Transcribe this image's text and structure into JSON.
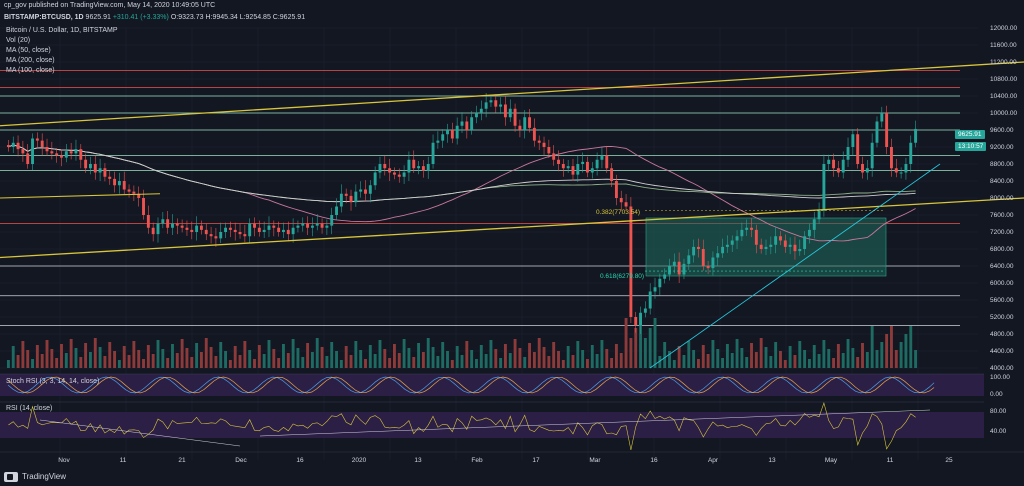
{
  "header": {
    "publisher": "cp_gov published on TradingView.com, May 14, 2020 10:49:05 UTC"
  },
  "symbol_bar": {
    "symbol": "BITSTAMP:BTCUSD, 1D",
    "price": "9625.91",
    "change": "+310.41 (+3.33%)",
    "ohlc": "O:9323.73  H:9945.34  L:9254.85  C:9625.91"
  },
  "legend": {
    "title": "Bitcoin / U.S. Dollar, 1D, BITSTAMP",
    "items": [
      "Vol (20)",
      "MA (50, close)",
      "MA (200, close)",
      "MA (100, close)"
    ]
  },
  "price_tags": {
    "current": "9625.91",
    "countdown": "13:10:57"
  },
  "indicators": {
    "stoch_label": "Stoch RSI (3, 3, 14, 14, close)",
    "rsi_label": "RSI (14, close)"
  },
  "fib_labels": {
    "fib382": "0.382(7703.54)",
    "fib618": "0.618(6279.80)"
  },
  "footer": {
    "brand": "TradingView"
  },
  "colors": {
    "background": "#131722",
    "up": "#26a69a",
    "down": "#ef5350",
    "trendline": "#d9c63a",
    "support_green": "#9ee3c8",
    "resistance_red": "#ef5350"
  },
  "chart_data": {
    "type": "candlestick",
    "title": "Bitcoin / U.S. Dollar, 1D, BITSTAMP",
    "y_ticks": [
      "12000.00",
      "11600.00",
      "11200.00",
      "10800.00",
      "10400.00",
      "10000.00",
      "9600.00",
      "9200.00",
      "8800.00",
      "8400.00",
      "8000.00",
      "7600.00",
      "7200.00",
      "6800.00",
      "6400.00",
      "6000.00",
      "5600.00",
      "5200.00",
      "4800.00",
      "4400.00",
      "4000.00"
    ],
    "ylim": [
      4000,
      12000
    ],
    "x_ticks": [
      "Nov",
      "11",
      "21",
      "Dec",
      "16",
      "2020",
      "13",
      "Feb",
      "17",
      "Mar",
      "16",
      "Apr",
      "13",
      "May",
      "11",
      "25"
    ],
    "stoch_ticks": [
      "100.00",
      "0.00"
    ],
    "rsi_ticks": [
      "80.00",
      "40.00"
    ],
    "closes": [
      9200,
      9300,
      9150,
      9050,
      8800,
      9400,
      9350,
      9200,
      9100,
      9050,
      9000,
      8950,
      9100,
      9050,
      9150,
      8900,
      8700,
      8800,
      8600,
      8700,
      8500,
      8450,
      8300,
      8400,
      8200,
      8150,
      8100,
      8000,
      7600,
      7300,
      7150,
      7400,
      7500,
      7300,
      7400,
      7350,
      7300,
      7250,
      7200,
      7350,
      7250,
      7150,
      7100,
      7050,
      7200,
      7300,
      7250,
      7200,
      7150,
      7100,
      7400,
      7300,
      7200,
      7250,
      7350,
      7300,
      7200,
      7250,
      7150,
      7300,
      7350,
      7400,
      7300,
      7350,
      7400,
      7300,
      7350,
      7600,
      7800,
      8100,
      8050,
      7900,
      8150,
      8200,
      8100,
      8300,
      8600,
      8800,
      8700,
      8600,
      8550,
      8500,
      8600,
      8900,
      8700,
      8750,
      8650,
      8800,
      9300,
      9350,
      9500,
      9600,
      9400,
      9700,
      9800,
      9600,
      9900,
      10000,
      10100,
      10250,
      10300,
      10150,
      10200,
      9900,
      10100,
      9700,
      9600,
      9900,
      9650,
      9350,
      9300,
      9200,
      9050,
      8900,
      8800,
      8700,
      8750,
      8550,
      8800,
      8850,
      8600,
      8700,
      8900,
      9000,
      8700,
      8400,
      8000,
      7900,
      7800,
      5200,
      5000,
      5300,
      5400,
      5800,
      5900,
      6100,
      6200,
      6400,
      6500,
      6200,
      6450,
      6650,
      6850,
      6800,
      6400,
      6350,
      6600,
      6700,
      6850,
      6900,
      7000,
      7100,
      7250,
      7300,
      7250,
      6900,
      6800,
      6850,
      6900,
      7100,
      7000,
      6850,
      6900,
      6750,
      6800,
      7100,
      7250,
      7500,
      7700,
      8800,
      8900,
      8700,
      8600,
      8900,
      9200,
      9500,
      8800,
      8600,
      8700,
      9300,
      9800,
      10000,
      9200,
      8700,
      8600,
      8600,
      8800,
      9300,
      9625
    ]
  }
}
